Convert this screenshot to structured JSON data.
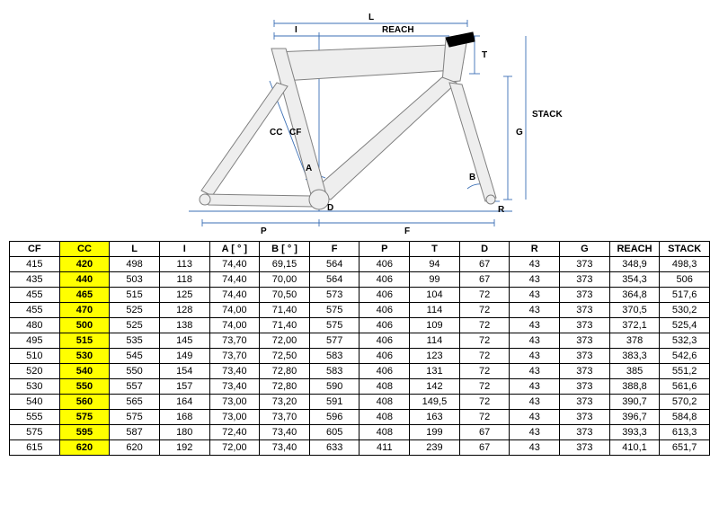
{
  "diagram": {
    "frame_fill": "#eeeeee",
    "frame_stroke": "#808080",
    "guide_stroke": "#3b6fb5",
    "guide_width": 0.9,
    "text_color": "#000000",
    "font_size": 10,
    "labels": {
      "L": "L",
      "I": "I",
      "REACH": "REACH",
      "T": "T",
      "G": "G",
      "STACK": "STACK",
      "CC": "CC",
      "CF": "CF",
      "A": "A",
      "B": "B",
      "D": "D",
      "P": "P",
      "F": "F",
      "R": "R"
    }
  },
  "table": {
    "highlight_col_index": 1,
    "highlight_bg": "#ffff00",
    "border_color": "#000000",
    "font_size": 11,
    "columns": [
      "CF",
      "CC",
      "L",
      "I",
      "A [ ° ]",
      "B [ ° ]",
      "F",
      "P",
      "T",
      "D",
      "R",
      "G",
      "REACH",
      "STACK"
    ],
    "rows": [
      [
        "415",
        "420",
        "498",
        "113",
        "74,40",
        "69,15",
        "564",
        "406",
        "94",
        "67",
        "43",
        "373",
        "348,9",
        "498,3"
      ],
      [
        "435",
        "440",
        "503",
        "118",
        "74,40",
        "70,00",
        "564",
        "406",
        "99",
        "67",
        "43",
        "373",
        "354,3",
        "506"
      ],
      [
        "455",
        "465",
        "515",
        "125",
        "74,40",
        "70,50",
        "573",
        "406",
        "104",
        "72",
        "43",
        "373",
        "364,8",
        "517,6"
      ],
      [
        "455",
        "470",
        "525",
        "128",
        "74,00",
        "71,40",
        "575",
        "406",
        "114",
        "72",
        "43",
        "373",
        "370,5",
        "530,2"
      ],
      [
        "480",
        "500",
        "525",
        "138",
        "74,00",
        "71,40",
        "575",
        "406",
        "109",
        "72",
        "43",
        "373",
        "372,1",
        "525,4"
      ],
      [
        "495",
        "515",
        "535",
        "145",
        "73,70",
        "72,00",
        "577",
        "406",
        "114",
        "72",
        "43",
        "373",
        "378",
        "532,3"
      ],
      [
        "510",
        "530",
        "545",
        "149",
        "73,70",
        "72,50",
        "583",
        "406",
        "123",
        "72",
        "43",
        "373",
        "383,3",
        "542,6"
      ],
      [
        "520",
        "540",
        "550",
        "154",
        "73,40",
        "72,80",
        "583",
        "406",
        "131",
        "72",
        "43",
        "373",
        "385",
        "551,2"
      ],
      [
        "530",
        "550",
        "557",
        "157",
        "73,40",
        "72,80",
        "590",
        "408",
        "142",
        "72",
        "43",
        "373",
        "388,8",
        "561,6"
      ],
      [
        "540",
        "560",
        "565",
        "164",
        "73,00",
        "73,20",
        "591",
        "408",
        "149,5",
        "72",
        "43",
        "373",
        "390,7",
        "570,2"
      ],
      [
        "555",
        "575",
        "575",
        "168",
        "73,00",
        "73,70",
        "596",
        "408",
        "163",
        "72",
        "43",
        "373",
        "396,7",
        "584,8"
      ],
      [
        "575",
        "595",
        "587",
        "180",
        "72,40",
        "73,40",
        "605",
        "408",
        "199",
        "67",
        "43",
        "373",
        "393,3",
        "613,3"
      ],
      [
        "615",
        "620",
        "620",
        "192",
        "72,00",
        "73,40",
        "633",
        "411",
        "239",
        "67",
        "43",
        "373",
        "410,1",
        "651,7"
      ]
    ]
  }
}
